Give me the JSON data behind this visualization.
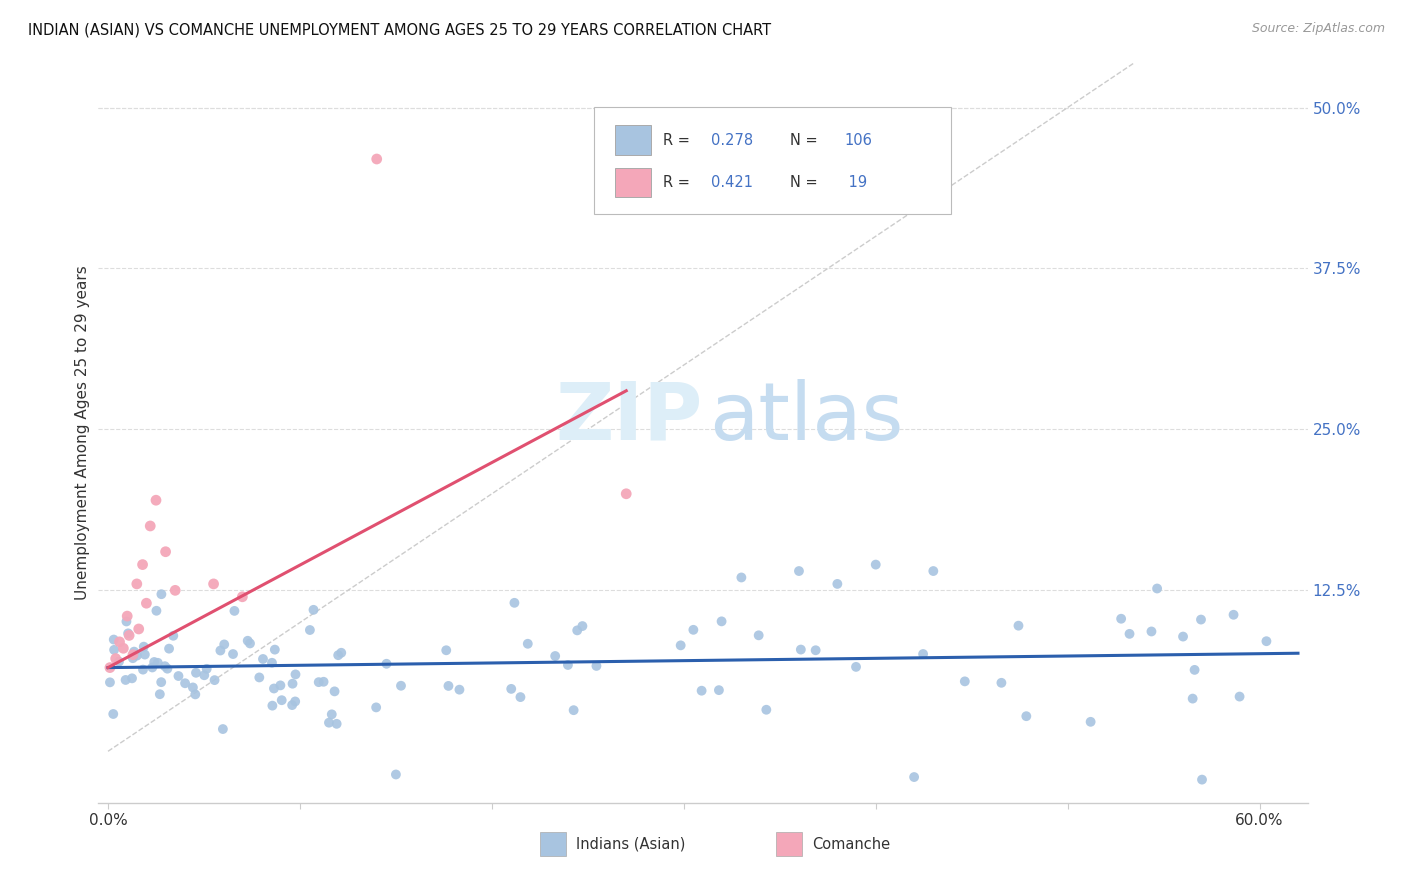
{
  "title": "INDIAN (ASIAN) VS COMANCHE UNEMPLOYMENT AMONG AGES 25 TO 29 YEARS CORRELATION CHART",
  "source": "Source: ZipAtlas.com",
  "ylabel": "Unemployment Among Ages 25 to 29 years",
  "xlim": [
    -0.005,
    0.625
  ],
  "ylim": [
    -0.04,
    0.535
  ],
  "xtick_vals": [
    0.0,
    0.1,
    0.2,
    0.3,
    0.4,
    0.5,
    0.6
  ],
  "xticklabels": [
    "0.0%",
    "",
    "",
    "",
    "",
    "",
    "60.0%"
  ],
  "ytick_right_labels": [
    "50.0%",
    "37.5%",
    "25.0%",
    "12.5%"
  ],
  "ytick_right_values": [
    0.5,
    0.375,
    0.25,
    0.125
  ],
  "legend_R_indian": "0.278",
  "legend_N_indian": "106",
  "legend_R_comanche": "0.421",
  "legend_N_comanche": "19",
  "indian_color": "#a8c4e0",
  "comanche_color": "#f4a7b9",
  "indian_line_color": "#2b5fad",
  "comanche_line_color": "#e05070",
  "diagonal_color": "#cccccc",
  "background_color": "#ffffff",
  "grid_color": "#dddddd",
  "text_color": "#333333",
  "blue_label_color": "#4472c4",
  "source_color": "#999999"
}
